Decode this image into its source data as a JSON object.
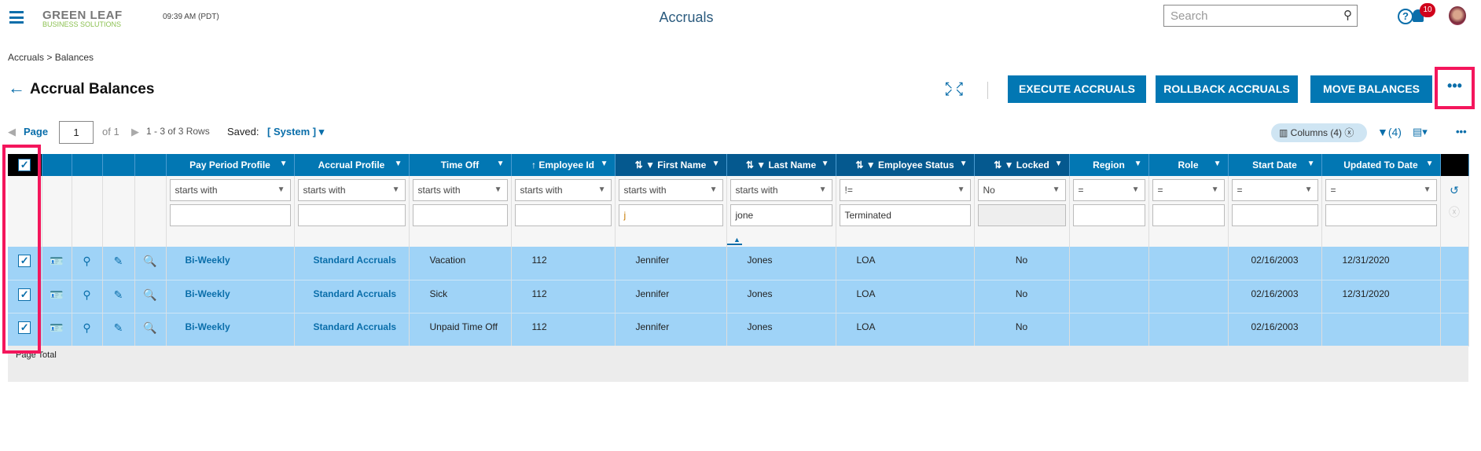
{
  "header": {
    "logo_line1": "GREEN LEAF",
    "logo_line2": "BUSINESS SOLUTIONS",
    "time": "09:39 AM (PDT)",
    "title": "Accruals",
    "search_placeholder": "Search",
    "notifications": "10"
  },
  "breadcrumb": "Accruals  >  Balances",
  "page": {
    "title": "Accrual Balances",
    "buttons": [
      "EXECUTE ACCRUALS",
      "ROLLBACK ACCRUALS",
      "MOVE BALANCES"
    ],
    "more": "•••"
  },
  "pager": {
    "label": "Page",
    "value": "1",
    "of": "of 1",
    "rows": "1 - 3 of 3 Rows",
    "saved_label": "Saved:",
    "saved_value": "[ System ]",
    "columns_chip": "Columns (4)",
    "filter_count": "(4)"
  },
  "grid": {
    "columns": [
      {
        "label": "Pay Period Profile",
        "sort": "",
        "filtered": false,
        "op": "starts with",
        "value": ""
      },
      {
        "label": "Accrual Profile",
        "sort": "",
        "filtered": false,
        "op": "starts with",
        "value": ""
      },
      {
        "label": "Time Off",
        "sort": "",
        "filtered": false,
        "op": "starts with",
        "value": ""
      },
      {
        "label": "Employee Id",
        "sort": "↑",
        "filtered": false,
        "op": "starts with",
        "value": ""
      },
      {
        "label": "First Name",
        "sort": "⇅",
        "filtered": true,
        "op": "starts with",
        "value": "j"
      },
      {
        "label": "Last Name",
        "sort": "⇅",
        "filtered": true,
        "op": "starts with",
        "value": "jone"
      },
      {
        "label": "Employee Status",
        "sort": "⇅",
        "filtered": true,
        "op": "!=",
        "value": "Terminated"
      },
      {
        "label": "Locked",
        "sort": "⇅",
        "filtered": true,
        "op": "No",
        "value": ""
      },
      {
        "label": "Region",
        "sort": "",
        "filtered": false,
        "op": "=",
        "value": ""
      },
      {
        "label": "Role",
        "sort": "",
        "filtered": false,
        "op": "=",
        "value": ""
      },
      {
        "label": "Start Date",
        "sort": "",
        "filtered": false,
        "op": "=",
        "value": ""
      },
      {
        "label": "Updated To Date",
        "sort": "",
        "filtered": false,
        "op": "=",
        "value": ""
      }
    ],
    "rows": [
      [
        "Bi-Weekly",
        "Standard Accruals",
        "Vacation",
        "112",
        "Jennifer",
        "Jones",
        "LOA",
        "No",
        "",
        "",
        "02/16/2003",
        "12/31/2020"
      ],
      [
        "Bi-Weekly",
        "Standard Accruals",
        "Sick",
        "112",
        "Jennifer",
        "Jones",
        "LOA",
        "No",
        "",
        "",
        "02/16/2003",
        "12/31/2020"
      ],
      [
        "Bi-Weekly",
        "Standard Accruals",
        "Unpaid Time Off",
        "112",
        "Jennifer",
        "Jones",
        "LOA",
        "No",
        "",
        "",
        "02/16/2003",
        ""
      ]
    ],
    "page_total": "Page Total"
  },
  "colors": {
    "accent": "#0277b3",
    "row_selected": "#9fd3f7",
    "highlight": "#f4165c"
  }
}
